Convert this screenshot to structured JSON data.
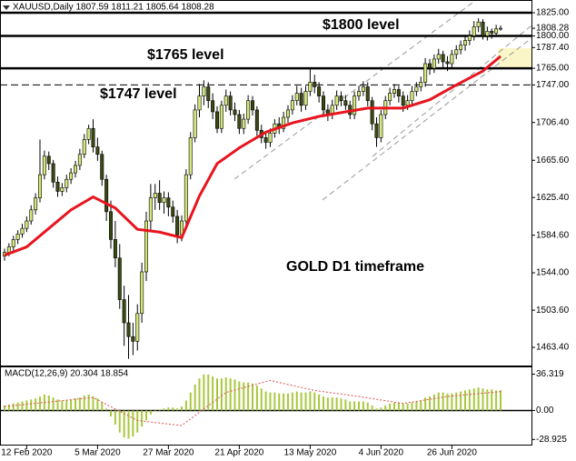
{
  "header": "XAUUSD,Daily  1807.59 1811.21 1805.64 1808.28",
  "chart_data": {
    "type": "candlestick",
    "categories": [
      null,
      null,
      null,
      null,
      null,
      "12 Feb 2020",
      null,
      null,
      null,
      null,
      null,
      null,
      null,
      null,
      null,
      null,
      null,
      null,
      null,
      null,
      null,
      "5 Mar 2020",
      null,
      null,
      null,
      null,
      null,
      null,
      null,
      null,
      null,
      null,
      null,
      null,
      null,
      null,
      null,
      "27 Mar 2020",
      null,
      null,
      null,
      null,
      null,
      null,
      null,
      null,
      null,
      null,
      null,
      null,
      null,
      null,
      null,
      "21 Apr 2020",
      null,
      null,
      null,
      null,
      null,
      null,
      null,
      null,
      null,
      null,
      null,
      null,
      null,
      null,
      null,
      "13 May 2020",
      null,
      null,
      null,
      null,
      null,
      null,
      null,
      null,
      null,
      null,
      null,
      null,
      null,
      null,
      null,
      "4 Jun 2020",
      null,
      null,
      null,
      null,
      null,
      null,
      null,
      null,
      null,
      null,
      null,
      null,
      null,
      null,
      null,
      "26 Jun 2020",
      null,
      null,
      null,
      null,
      null,
      null,
      null,
      null,
      null,
      null,
      null
    ],
    "candles": [
      [
        1562,
        1570,
        1557,
        1566
      ],
      [
        1566,
        1576,
        1562,
        1572
      ],
      [
        1572,
        1584,
        1568,
        1580
      ],
      [
        1580,
        1590,
        1575,
        1586
      ],
      [
        1586,
        1597,
        1582,
        1592
      ],
      [
        1592,
        1605,
        1588,
        1600
      ],
      [
        1600,
        1617,
        1596,
        1612
      ],
      [
        1612,
        1630,
        1607,
        1625
      ],
      [
        1625,
        1688,
        1620,
        1650
      ],
      [
        1650,
        1676,
        1645,
        1670
      ],
      [
        1670,
        1675,
        1655,
        1662
      ],
      [
        1662,
        1666,
        1636,
        1642
      ],
      [
        1642,
        1648,
        1626,
        1632
      ],
      [
        1632,
        1641,
        1627,
        1636
      ],
      [
        1636,
        1650,
        1631,
        1645
      ],
      [
        1645,
        1657,
        1640,
        1652
      ],
      [
        1652,
        1665,
        1647,
        1660
      ],
      [
        1660,
        1678,
        1655,
        1672
      ],
      [
        1672,
        1694,
        1668,
        1688
      ],
      [
        1688,
        1704,
        1683,
        1700
      ],
      [
        1700,
        1710,
        1674,
        1680
      ],
      [
        1680,
        1690,
        1665,
        1672
      ],
      [
        1672,
        1676,
        1638,
        1645
      ],
      [
        1645,
        1650,
        1600,
        1610
      ],
      [
        1610,
        1622,
        1570,
        1580
      ],
      [
        1580,
        1600,
        1550,
        1560
      ],
      [
        1560,
        1575,
        1505,
        1515
      ],
      [
        1515,
        1530,
        1465,
        1490
      ],
      [
        1490,
        1520,
        1451,
        1475
      ],
      [
        1475,
        1490,
        1455,
        1470
      ],
      [
        1470,
        1510,
        1460,
        1500
      ],
      [
        1500,
        1555,
        1490,
        1545
      ],
      [
        1545,
        1610,
        1535,
        1600
      ],
      [
        1600,
        1640,
        1590,
        1625
      ],
      [
        1625,
        1640,
        1612,
        1630
      ],
      [
        1630,
        1644,
        1612,
        1620
      ],
      [
        1620,
        1632,
        1608,
        1625
      ],
      [
        1625,
        1631,
        1605,
        1615
      ],
      [
        1615,
        1622,
        1598,
        1605
      ],
      [
        1605,
        1612,
        1576,
        1585
      ],
      [
        1585,
        1606,
        1578,
        1600
      ],
      [
        1600,
        1656,
        1595,
        1650
      ],
      [
        1650,
        1696,
        1645,
        1690
      ],
      [
        1690,
        1726,
        1685,
        1720
      ],
      [
        1720,
        1748,
        1712,
        1735
      ],
      [
        1735,
        1752,
        1725,
        1745
      ],
      [
        1745,
        1750,
        1722,
        1730
      ],
      [
        1730,
        1738,
        1710,
        1718
      ],
      [
        1718,
        1724,
        1695,
        1700
      ],
      [
        1700,
        1730,
        1695,
        1725
      ],
      [
        1725,
        1742,
        1718,
        1735
      ],
      [
        1735,
        1740,
        1714,
        1720
      ],
      [
        1720,
        1728,
        1708,
        1715
      ],
      [
        1715,
        1720,
        1694,
        1700
      ],
      [
        1700,
        1716,
        1694,
        1710
      ],
      [
        1710,
        1736,
        1705,
        1730
      ],
      [
        1730,
        1735,
        1714,
        1720
      ],
      [
        1720,
        1724,
        1692,
        1698
      ],
      [
        1698,
        1704,
        1684,
        1690
      ],
      [
        1690,
        1695,
        1678,
        1685
      ],
      [
        1685,
        1700,
        1680,
        1695
      ],
      [
        1695,
        1710,
        1690,
        1705
      ],
      [
        1705,
        1712,
        1694,
        1700
      ],
      [
        1700,
        1718,
        1696,
        1712
      ],
      [
        1712,
        1725,
        1706,
        1720
      ],
      [
        1720,
        1736,
        1715,
        1730
      ],
      [
        1730,
        1746,
        1725,
        1738
      ],
      [
        1738,
        1744,
        1718,
        1725
      ],
      [
        1725,
        1746,
        1720,
        1740
      ],
      [
        1740,
        1765,
        1735,
        1750
      ],
      [
        1750,
        1758,
        1738,
        1745
      ],
      [
        1745,
        1750,
        1728,
        1735
      ],
      [
        1735,
        1740,
        1714,
        1720
      ],
      [
        1720,
        1726,
        1708,
        1715
      ],
      [
        1715,
        1731,
        1710,
        1725
      ],
      [
        1725,
        1741,
        1720,
        1735
      ],
      [
        1735,
        1740,
        1724,
        1730
      ],
      [
        1730,
        1736,
        1720,
        1725
      ],
      [
        1725,
        1730,
        1710,
        1715
      ],
      [
        1715,
        1740,
        1710,
        1735
      ],
      [
        1735,
        1746,
        1730,
        1740
      ],
      [
        1740,
        1751,
        1735,
        1745
      ],
      [
        1745,
        1750,
        1724,
        1730
      ],
      [
        1730,
        1734,
        1698,
        1705
      ],
      [
        1705,
        1712,
        1680,
        1690
      ],
      [
        1690,
        1720,
        1685,
        1715
      ],
      [
        1715,
        1735,
        1710,
        1730
      ],
      [
        1730,
        1744,
        1725,
        1738
      ],
      [
        1738,
        1748,
        1733,
        1742
      ],
      [
        1742,
        1746,
        1728,
        1735
      ],
      [
        1735,
        1740,
        1718,
        1725
      ],
      [
        1725,
        1736,
        1720,
        1730
      ],
      [
        1730,
        1746,
        1725,
        1740
      ],
      [
        1740,
        1750,
        1735,
        1745
      ],
      [
        1745,
        1756,
        1740,
        1750
      ],
      [
        1750,
        1776,
        1745,
        1770
      ],
      [
        1770,
        1775,
        1758,
        1765
      ],
      [
        1765,
        1780,
        1760,
        1775
      ],
      [
        1775,
        1786,
        1770,
        1780
      ],
      [
        1780,
        1784,
        1765,
        1772
      ],
      [
        1772,
        1778,
        1762,
        1770
      ],
      [
        1770,
        1785,
        1765,
        1780
      ],
      [
        1780,
        1790,
        1775,
        1785
      ],
      [
        1785,
        1795,
        1780,
        1790
      ],
      [
        1790,
        1800,
        1784,
        1795
      ],
      [
        1795,
        1806,
        1790,
        1800
      ],
      [
        1800,
        1816,
        1795,
        1810
      ],
      [
        1810,
        1819,
        1804,
        1815
      ],
      [
        1815,
        1818,
        1796,
        1800
      ],
      [
        1800,
        1810,
        1795,
        1805
      ],
      [
        1805,
        1808,
        1797,
        1803
      ],
      [
        1803,
        1812,
        1800,
        1807.59
      ],
      [
        1807.59,
        1811.21,
        1805.64,
        1808.28
      ]
    ],
    "bull_color": "#d4e77a",
    "bear_color": "#3b4a12",
    "ma": {
      "color": "#e8141e",
      "x": [
        0,
        5,
        10,
        15,
        20,
        25,
        30,
        35,
        40,
        44,
        48,
        53,
        59,
        65,
        71,
        82,
        90,
        96,
        102,
        108,
        112
      ],
      "values": [
        1563,
        1572,
        1592,
        1612,
        1626,
        1614,
        1591,
        1588,
        1582,
        1627,
        1662,
        1679,
        1696,
        1706,
        1713,
        1722,
        1722,
        1731,
        1747,
        1762,
        1778
      ]
    },
    "ylim": [
      1442.8,
      1838.8
    ],
    "yticks": [
      {
        "value": 1825,
        "label": "1825.00"
      },
      {
        "value": 1808.28,
        "label": "1808.28"
      },
      {
        "value": 1800,
        "label": "1800.00"
      },
      {
        "value": 1787.4,
        "label": "1787.40"
      },
      {
        "value": 1765,
        "label": "1765.00"
      },
      {
        "value": 1747,
        "label": "1747.00"
      },
      {
        "value": 1706.4,
        "label": "1706.40"
      },
      {
        "value": 1665.6,
        "label": "1665.60"
      },
      {
        "value": 1625.4,
        "label": "1625.40"
      },
      {
        "value": 1584.6,
        "label": "1584.60"
      },
      {
        "value": 1544,
        "label": "1544.00"
      },
      {
        "value": 1503.6,
        "label": "1503.60"
      },
      {
        "value": 1463.4,
        "label": "1463.40"
      }
    ],
    "levels": [
      {
        "value": 1825,
        "style": "solid"
      },
      {
        "value": 1800,
        "style": "solid"
      },
      {
        "value": 1765,
        "style": "solid"
      },
      {
        "value": 1747,
        "style": "dashed"
      }
    ],
    "annotations": [
      "$1800 level",
      "$1765 level",
      "$1747 level",
      "GOLD D1 timeframe"
    ],
    "macd": {
      "label": "MACD(12,26,9) 20.304 18.854",
      "color": "#a8c83c",
      "values": [
        5,
        6,
        7,
        8,
        9,
        10,
        11,
        12,
        14,
        16,
        15,
        13,
        11,
        10,
        10,
        11,
        12,
        13,
        15,
        16,
        14,
        12,
        8,
        2,
        -6,
        -14,
        -22,
        -27,
        -28,
        -26,
        -22,
        -16,
        -10,
        -4,
        -1,
        1,
        2,
        3,
        3,
        2,
        4,
        10,
        18,
        26,
        32,
        36,
        36,
        34,
        32,
        32,
        33,
        32,
        31,
        29,
        28,
        28,
        27,
        25,
        22,
        19,
        18,
        18,
        17,
        17,
        17,
        18,
        19,
        18,
        18,
        19,
        18,
        16,
        14,
        13,
        13,
        13,
        12,
        11,
        9,
        9,
        9,
        9,
        8,
        5,
        2,
        3,
        5,
        7,
        8,
        8,
        7,
        7,
        8,
        9,
        10,
        13,
        14,
        16,
        18,
        18,
        17,
        17,
        18,
        19,
        20,
        21,
        22,
        23,
        22,
        21,
        21,
        20,
        20.304
      ],
      "signal": {
        "color": "#e05050",
        "x": [
          0,
          20,
          30,
          40,
          50,
          60,
          70,
          80,
          90,
          100,
          112
        ],
        "values": [
          4,
          13,
          -10,
          -15,
          18,
          30,
          20,
          14,
          7,
          14,
          18.854
        ]
      },
      "ylim": [
        -35,
        44
      ],
      "yticks": [
        {
          "value": 36.319,
          "label": "36.319"
        },
        {
          "value": 0,
          "label": "0.00"
        },
        {
          "value": -28.925,
          "label": "-28.925"
        }
      ]
    }
  }
}
